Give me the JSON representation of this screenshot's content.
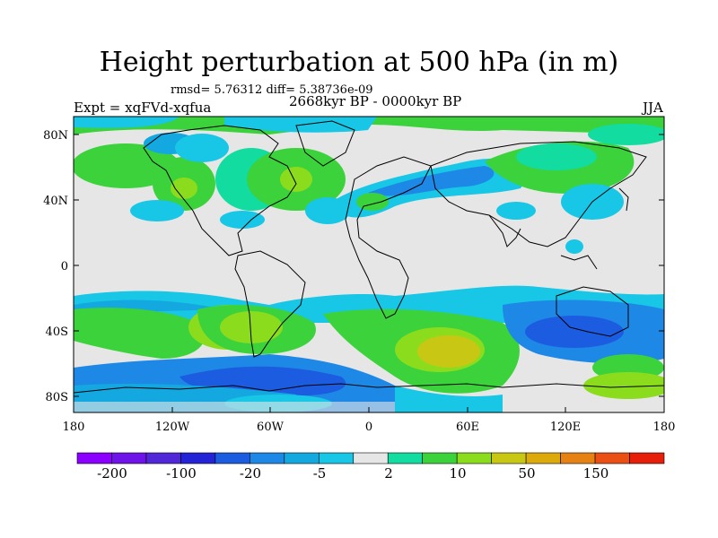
{
  "title": "Height perturbation at 500 hPa (in m)",
  "stats": "rmsd= 5.76312 diff= 5.38736e-09",
  "experiment": "Expt = xqFVd-xqfua",
  "period": "2668kyr BP - 0000kyr BP",
  "season": "JJA",
  "lat_ticks": [
    "80N",
    "40N",
    "0",
    "40S",
    "80S"
  ],
  "lon_ticks": [
    "180",
    "120W",
    "60W",
    "0",
    "60E",
    "120E",
    "180"
  ],
  "colorbar": {
    "colors": [
      "#8b00ff",
      "#6f14e8",
      "#5028d8",
      "#2424d6",
      "#1c5ce0",
      "#1e88e6",
      "#14a8e0",
      "#18c6e6",
      "#e6e6e6",
      "#12dca0",
      "#3cd23c",
      "#8cdc1e",
      "#c8c814",
      "#dcaa0a",
      "#e68214",
      "#ea5014",
      "#e61e0a"
    ],
    "labels": [
      "-200",
      "-100",
      "-20",
      "-5",
      "2",
      "10",
      "50",
      "150"
    ]
  }
}
